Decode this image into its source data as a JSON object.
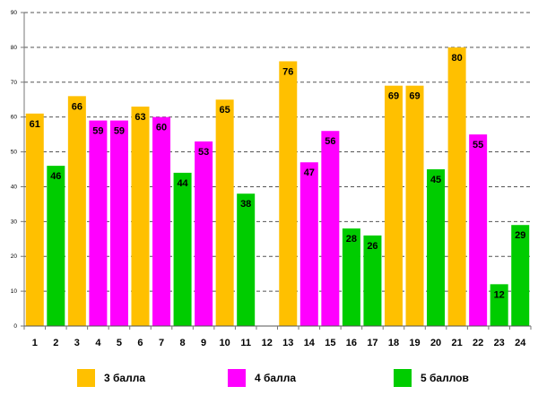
{
  "chart_data": {
    "type": "bar",
    "title": "",
    "xlabel": "",
    "ylabel": "",
    "ylim": [
      0,
      90
    ],
    "y_ticks": [
      0,
      10,
      20,
      30,
      40,
      50,
      60,
      70,
      80,
      90
    ],
    "grid": true,
    "categories": [
      "1",
      "2",
      "3",
      "4",
      "5",
      "6",
      "7",
      "8",
      "9",
      "10",
      "11",
      "12",
      "13",
      "14",
      "15",
      "16",
      "17",
      "18",
      "19",
      "20",
      "21",
      "22",
      "23",
      "24"
    ],
    "values": [
      61,
      46,
      66,
      59,
      59,
      63,
      60,
      44,
      53,
      65,
      38,
      null,
      76,
      47,
      56,
      28,
      26,
      69,
      69,
      45,
      80,
      55,
      12,
      29
    ],
    "groups": [
      "g3",
      "g5",
      "g3",
      "g4",
      "g4",
      "g3",
      "g4",
      "g5",
      "g4",
      "g3",
      "g5",
      null,
      "g3",
      "g4",
      "g4",
      "g5",
      "g5",
      "g3",
      "g3",
      "g5",
      "g3",
      "g4",
      "g5",
      "g5"
    ],
    "legend": [
      {
        "key": "g3",
        "label": "3 балла",
        "color": "#FFC000"
      },
      {
        "key": "g4",
        "label": "4 балла",
        "color": "#FF00FF"
      },
      {
        "key": "g5",
        "label": "5 баллов",
        "color": "#00CC00"
      }
    ],
    "legend_position": "bottom"
  }
}
